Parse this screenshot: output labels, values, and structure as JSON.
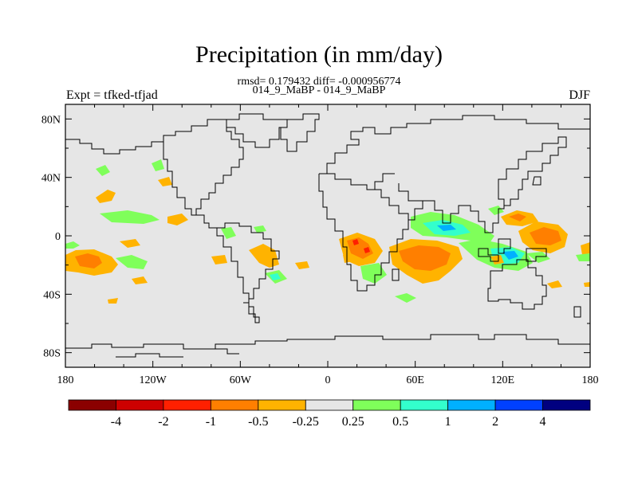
{
  "title": "Precipitation (in mm/day)",
  "stats_line": "rmsd= 0.179432 diff= -0.000956774",
  "cases_line": "014_9_MaBP - 014_9_MaBP",
  "left_label": "Expt = tfked-tfjad",
  "right_label": "DJF",
  "map": {
    "lon_range": [
      -180,
      180
    ],
    "lat_range": [
      -90,
      90
    ],
    "background": "#e6e6e6",
    "lat_ticks": [
      {
        "value": 80,
        "label": "80N"
      },
      {
        "value": 40,
        "label": "40N"
      },
      {
        "value": 0,
        "label": "0"
      },
      {
        "value": -40,
        "label": "40S"
      },
      {
        "value": -80,
        "label": "80S"
      }
    ],
    "lon_ticks": [
      {
        "value": -180,
        "label": "180"
      },
      {
        "value": -120,
        "label": "120W"
      },
      {
        "value": -60,
        "label": "60W"
      },
      {
        "value": 0,
        "label": "0"
      },
      {
        "value": 60,
        "label": "60E"
      },
      {
        "value": 120,
        "label": "120E"
      },
      {
        "value": 180,
        "label": "180"
      }
    ]
  },
  "colorbar": {
    "colors": [
      "#8b0000",
      "#cd0000",
      "#ff2000",
      "#ff7f00",
      "#ffb300",
      "#e6e6e6",
      "#7fff5a",
      "#33ffcc",
      "#00b0ff",
      "#0040ff",
      "#000080"
    ],
    "labels": [
      "-4",
      "-2",
      "-1",
      "-0.5",
      "-0.25",
      "0.25",
      "0.5",
      "1",
      "2",
      "4"
    ]
  }
}
